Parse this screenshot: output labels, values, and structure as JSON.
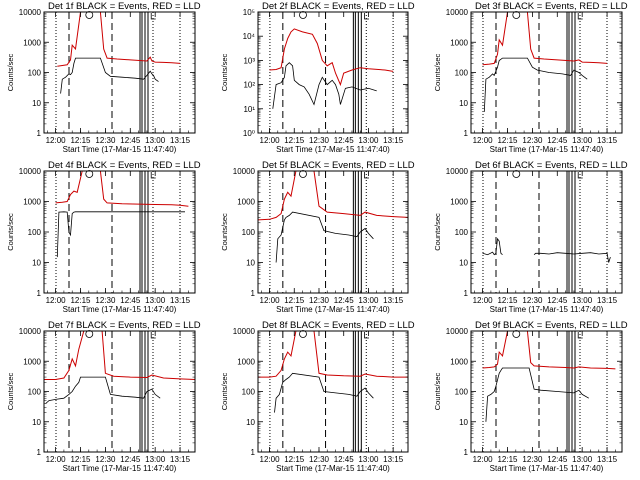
{
  "chart_data": [
    {
      "type": "line",
      "title": "Det 1f BLACK = Events, RED = LLD",
      "xlabel": "Start Time (17-Mar-15 11:47:40)",
      "ylabel": "Counts/sec",
      "xlim": [
        "11:53",
        "13:24"
      ],
      "x_ticks": [
        "12:00",
        "12:15",
        "12:30",
        "12:45",
        "13:00",
        "13:15"
      ],
      "ylim": [
        1,
        10000
      ],
      "yscale": "log",
      "y_ticks": [
        "1",
        "10",
        "100",
        "1000",
        "10000"
      ],
      "grid": false,
      "legend": "none",
      "series": [
        {
          "color": "#cc0000",
          "x": [
            "12:01",
            "12:04",
            "12:07",
            "12:09",
            "12:10",
            "12:12",
            "12:15",
            "12:20",
            "12:27",
            "12:29",
            "12:31",
            "12:37",
            "12:45",
            "12:55",
            "12:57",
            "12:58",
            "13:00",
            "13:05",
            "13:10",
            "13:15"
          ],
          "y": [
            160,
            170,
            180,
            260,
            800,
            600,
            10000,
            10000,
            10000,
            600,
            300,
            280,
            260,
            240,
            320,
            240,
            220,
            215,
            210,
            200
          ]
        },
        {
          "color": "#000000",
          "x": [
            "12:03",
            "12:04",
            "12:06",
            "12:08",
            "12:09",
            "12:10",
            "12:11",
            "12:12",
            "12:27",
            "12:30",
            "12:33",
            "12:40",
            "12:48",
            "12:53",
            "12:55",
            "12:57",
            "12:58",
            "12:59",
            "13:00",
            "13:02"
          ],
          "y": [
            20,
            60,
            70,
            90,
            85,
            100,
            200,
            300,
            300,
            100,
            75,
            70,
            65,
            60,
            80,
            110,
            90,
            80,
            60,
            50
          ]
        }
      ]
    },
    {
      "type": "line",
      "title": "Det 2f BLACK = Events, RED = LLD",
      "xlabel": "Start Time (17-Mar-15 11:47:40)",
      "ylabel": "Counts/sec",
      "xlim": [
        "11:53",
        "13:24"
      ],
      "x_ticks": [
        "12:00",
        "12:15",
        "12:30",
        "12:45",
        "13:00",
        "13:15"
      ],
      "ylim": [
        1,
        100000
      ],
      "yscale": "log",
      "y_ticks": [
        "10⁰",
        "10¹",
        "10²",
        "10³",
        "10⁴",
        "10⁵"
      ],
      "grid": false,
      "legend": "none",
      "series": [
        {
          "color": "#cc0000",
          "x": [
            "12:00",
            "12:04",
            "12:07",
            "12:09",
            "12:11",
            "12:13",
            "12:15",
            "12:20",
            "12:26",
            "12:29",
            "12:32",
            "12:35",
            "12:38",
            "12:40",
            "12:43",
            "12:45",
            "12:50",
            "12:55",
            "13:00",
            "13:10",
            "13:15"
          ],
          "y": [
            400,
            420,
            500,
            3000,
            8000,
            15000,
            20000,
            15000,
            12000,
            5000,
            1000,
            600,
            800,
            300,
            100,
            300,
            400,
            500,
            450,
            400,
            350
          ]
        },
        {
          "color": "#000000",
          "x": [
            "12:02",
            "12:04",
            "12:07",
            "12:09",
            "12:10",
            "12:12",
            "12:14",
            "12:15",
            "12:18",
            "12:21",
            "12:24",
            "12:27",
            "12:30",
            "12:32",
            "12:35",
            "12:38",
            "12:40",
            "12:42",
            "12:43",
            "12:46",
            "12:50",
            "12:55",
            "13:00",
            "13:05"
          ],
          "y": [
            10,
            100,
            120,
            200,
            600,
            800,
            600,
            150,
            100,
            80,
            40,
            15,
            100,
            200,
            100,
            150,
            100,
            40,
            15,
            70,
            80,
            60,
            70,
            55
          ]
        }
      ]
    },
    {
      "type": "line",
      "title": "Det 3f BLACK = Events, RED = LLD",
      "xlabel": "Start Time (17-Mar-15 11:47:40)",
      "ylabel": "Counts/sec",
      "xlim": [
        "11:53",
        "13:24"
      ],
      "x_ticks": [
        "12:00",
        "12:15",
        "12:30",
        "12:45",
        "13:00",
        "13:15"
      ],
      "ylim": [
        1,
        10000
      ],
      "yscale": "log",
      "y_ticks": [
        "1",
        "10",
        "100",
        "1000",
        "10000"
      ],
      "grid": false,
      "legend": "none",
      "series": [
        {
          "color": "#cc0000",
          "x": [
            "12:00",
            "12:04",
            "12:07",
            "12:09",
            "12:10",
            "12:12",
            "12:15",
            "12:20",
            "12:27",
            "12:29",
            "12:31",
            "12:37",
            "12:45",
            "12:55",
            "12:58",
            "13:00",
            "13:05",
            "13:10",
            "13:15"
          ],
          "y": [
            180,
            190,
            200,
            400,
            1200,
            800,
            10000,
            10000,
            10000,
            600,
            300,
            280,
            260,
            240,
            260,
            220,
            215,
            210,
            200
          ]
        },
        {
          "color": "#000000",
          "x": [
            "12:01",
            "12:02",
            "12:04",
            "12:06",
            "12:07",
            "12:09",
            "12:10",
            "12:12",
            "12:27",
            "12:30",
            "12:33",
            "12:40",
            "12:48",
            "12:53",
            "12:55",
            "12:58",
            "13:00",
            "13:03"
          ],
          "y": [
            5,
            60,
            70,
            90,
            80,
            150,
            250,
            300,
            300,
            150,
            120,
            100,
            90,
            80,
            120,
            100,
            80,
            60
          ]
        }
      ]
    },
    {
      "type": "line",
      "title": "Det 4f BLACK = Events, RED = LLD",
      "xlabel": "Start Time (17-Mar-15 11:47:40)",
      "ylabel": "Counts/sec",
      "xlim": [
        "11:53",
        "13:24"
      ],
      "x_ticks": [
        "12:00",
        "12:15",
        "12:30",
        "12:45",
        "13:00",
        "13:15"
      ],
      "ylim": [
        1,
        10000
      ],
      "yscale": "log",
      "y_ticks": [
        "1",
        "10",
        "100",
        "1000",
        "10000"
      ],
      "grid": false,
      "legend": "none",
      "series": [
        {
          "color": "#cc0000",
          "x": [
            "12:00",
            "12:04",
            "12:07",
            "12:09",
            "12:11",
            "12:13",
            "12:16",
            "12:22",
            "12:27",
            "12:29",
            "12:31",
            "12:40",
            "12:50",
            "13:00",
            "13:10",
            "13:15",
            "13:20"
          ],
          "y": [
            900,
            950,
            1000,
            1700,
            2200,
            2000,
            10000,
            10000,
            10000,
            1200,
            900,
            850,
            820,
            800,
            780,
            750,
            700
          ]
        },
        {
          "color": "#000000",
          "x": [
            "12:01",
            "12:02",
            "12:05",
            "12:07",
            "12:08",
            "12:09",
            "12:10",
            "12:11",
            "12:12",
            "12:31",
            "12:34",
            "12:40",
            "12:50",
            "13:00",
            "13:10",
            "13:18"
          ],
          "y": [
            15,
            450,
            460,
            450,
            100,
            80,
            400,
            450,
            460,
            460,
            460,
            460,
            460,
            460,
            460,
            460
          ]
        }
      ]
    },
    {
      "type": "line",
      "title": "Det 5f BLACK = Events, RED = LLD",
      "xlabel": "Start Time (17-Mar-15 11:47:40)",
      "ylabel": "Counts/sec",
      "xlim": [
        "11:53",
        "13:24"
      ],
      "x_ticks": [
        "12:00",
        "12:15",
        "12:30",
        "12:45",
        "13:00",
        "13:15"
      ],
      "ylim": [
        1,
        10000
      ],
      "yscale": "log",
      "y_ticks": [
        "1",
        "10",
        "100",
        "1000",
        "10000"
      ],
      "grid": false,
      "legend": "none",
      "series": [
        {
          "color": "#cc0000",
          "x": [
            "11:53",
            "12:00",
            "12:04",
            "12:07",
            "12:09",
            "12:11",
            "12:13",
            "12:16",
            "12:22",
            "12:27",
            "12:30",
            "12:35",
            "12:45",
            "12:55",
            "12:58",
            "13:05",
            "13:15",
            "13:24"
          ],
          "y": [
            250,
            260,
            300,
            400,
            1200,
            2000,
            1500,
            10000,
            10000,
            10000,
            700,
            450,
            400,
            350,
            450,
            350,
            320,
            300
          ]
        },
        {
          "color": "#000000",
          "x": [
            "12:04",
            "12:05",
            "12:07",
            "12:09",
            "12:10",
            "12:12",
            "12:14",
            "12:30",
            "12:33",
            "12:40",
            "12:48",
            "12:53",
            "12:55",
            "12:58",
            "13:00",
            "13:03"
          ],
          "y": [
            10,
            60,
            80,
            250,
            300,
            350,
            450,
            300,
            110,
            90,
            80,
            70,
            100,
            130,
            90,
            60
          ]
        }
      ]
    },
    {
      "type": "line",
      "title": "Det 6f BLACK = Events, RED = LLD",
      "xlabel": "Start Time (17-Mar-15 11:47:40)",
      "ylabel": "Counts/sec",
      "xlim": [
        "11:53",
        "13:24"
      ],
      "x_ticks": [
        "12:00",
        "12:15",
        "12:30",
        "12:45",
        "13:00",
        "13:15"
      ],
      "ylim": [
        1,
        10000
      ],
      "yscale": "log",
      "y_ticks": [
        "1",
        "10",
        "100",
        "1000",
        "10000"
      ],
      "grid": false,
      "legend": "none",
      "series": [
        {
          "color": "#000000",
          "x": [
            "12:00",
            "12:03",
            "12:06",
            "12:07",
            "12:08",
            "12:09",
            "12:10",
            "12:11",
            "12:12"
          ],
          "y": [
            20,
            18,
            22,
            18,
            20,
            60,
            50,
            20,
            18
          ]
        },
        {
          "color": "#000000",
          "x": [
            "12:31",
            "12:32",
            "12:35",
            "12:40",
            "12:45",
            "12:50",
            "12:55",
            "13:00",
            "13:05",
            "13:10",
            "13:15",
            "13:16",
            "13:17"
          ],
          "y": [
            18,
            20,
            20,
            19,
            21,
            20,
            19,
            20,
            21,
            19,
            20,
            10,
            15
          ]
        }
      ]
    },
    {
      "type": "line",
      "title": "Det 7f BLACK = Events, RED = LLD",
      "xlabel": "Start Time (17-Mar-15 11:47:40)",
      "ylabel": "Counts/sec",
      "xlim": [
        "11:53",
        "13:24"
      ],
      "x_ticks": [
        "12:00",
        "12:15",
        "12:30",
        "12:45",
        "13:00",
        "13:15"
      ],
      "ylim": [
        1,
        10000
      ],
      "yscale": "log",
      "y_ticks": [
        "1",
        "10",
        "100",
        "1000",
        "10000"
      ],
      "grid": false,
      "legend": "none",
      "series": [
        {
          "color": "#cc0000",
          "x": [
            "11:53",
            "12:00",
            "12:05",
            "12:08",
            "12:10",
            "12:12",
            "12:14",
            "12:17",
            "12:25",
            "12:28",
            "12:30",
            "12:35",
            "12:45",
            "12:55",
            "12:58",
            "13:05",
            "13:15",
            "13:24"
          ],
          "y": [
            250,
            250,
            280,
            500,
            1200,
            700,
            2500,
            10000,
            10000,
            10000,
            400,
            320,
            300,
            290,
            350,
            280,
            260,
            250
          ]
        },
        {
          "color": "#000000",
          "x": [
            "11:54",
            "11:56",
            "12:00",
            "12:05",
            "12:08",
            "12:10",
            "12:12",
            "12:14",
            "12:15",
            "12:30",
            "12:33",
            "12:40",
            "12:48",
            "12:53",
            "12:55",
            "12:58",
            "13:00",
            "13:03"
          ],
          "y": [
            40,
            50,
            55,
            60,
            80,
            100,
            150,
            200,
            300,
            300,
            80,
            70,
            65,
            60,
            100,
            120,
            80,
            60
          ]
        }
      ]
    },
    {
      "type": "line",
      "title": "Det 8f BLACK = Events, RED = LLD",
      "xlabel": "Start Time (17-Mar-15 11:47:40)",
      "ylabel": "Counts/sec",
      "xlim": [
        "11:53",
        "13:24"
      ],
      "x_ticks": [
        "12:00",
        "12:15",
        "12:30",
        "12:45",
        "13:00",
        "13:15"
      ],
      "ylim": [
        1,
        10000
      ],
      "yscale": "log",
      "y_ticks": [
        "1",
        "10",
        "100",
        "1000",
        "10000"
      ],
      "grid": false,
      "legend": "none",
      "series": [
        {
          "color": "#cc0000",
          "x": [
            "11:53",
            "12:00",
            "12:04",
            "12:07",
            "12:09",
            "12:11",
            "12:13",
            "12:16",
            "12:22",
            "12:27",
            "12:30",
            "12:35",
            "12:45",
            "12:55",
            "12:58",
            "13:05",
            "13:15",
            "13:24"
          ],
          "y": [
            300,
            300,
            320,
            500,
            1200,
            2000,
            1500,
            10000,
            10000,
            10000,
            400,
            350,
            330,
            320,
            380,
            320,
            300,
            300
          ]
        },
        {
          "color": "#000000",
          "x": [
            "12:03",
            "12:04",
            "12:06",
            "12:08",
            "12:10",
            "12:12",
            "12:14",
            "12:30",
            "12:33",
            "12:40",
            "12:48",
            "12:53",
            "12:55",
            "12:58",
            "13:00",
            "13:03"
          ],
          "y": [
            20,
            60,
            80,
            200,
            250,
            300,
            400,
            300,
            100,
            90,
            80,
            70,
            100,
            130,
            90,
            60
          ]
        }
      ]
    },
    {
      "type": "line",
      "title": "Det 9f BLACK = Events, RED = LLD",
      "xlabel": "Start Time (17-Mar-15 11:47:40)",
      "ylabel": "Counts/sec",
      "xlim": [
        "11:53",
        "13:24"
      ],
      "x_ticks": [
        "12:00",
        "12:15",
        "12:30",
        "12:45",
        "13:00",
        "13:15"
      ],
      "ylim": [
        1,
        10000
      ],
      "yscale": "log",
      "y_ticks": [
        "1",
        "10",
        "100",
        "1000",
        "10000"
      ],
      "grid": false,
      "legend": "none",
      "series": [
        {
          "color": "#cc0000",
          "x": [
            "12:00",
            "12:04",
            "12:07",
            "12:09",
            "12:10",
            "12:12",
            "12:15",
            "12:20",
            "12:27",
            "12:29",
            "12:31",
            "12:40",
            "12:50",
            "12:55",
            "12:58",
            "13:05",
            "13:15",
            "13:20"
          ],
          "y": [
            600,
            620,
            650,
            800,
            2000,
            1500,
            10000,
            10000,
            10000,
            900,
            700,
            650,
            620,
            600,
            650,
            600,
            580,
            560
          ]
        },
        {
          "color": "#000000",
          "x": [
            "12:02",
            "12:03",
            "12:05",
            "12:07",
            "12:08",
            "12:10",
            "12:11",
            "12:12",
            "12:28",
            "12:31",
            "12:35",
            "12:45",
            "12:55",
            "12:58",
            "13:00",
            "13:04"
          ],
          "y": [
            10,
            70,
            80,
            100,
            150,
            400,
            500,
            600,
            600,
            120,
            110,
            100,
            90,
            110,
            80,
            60
          ]
        }
      ]
    }
  ]
}
